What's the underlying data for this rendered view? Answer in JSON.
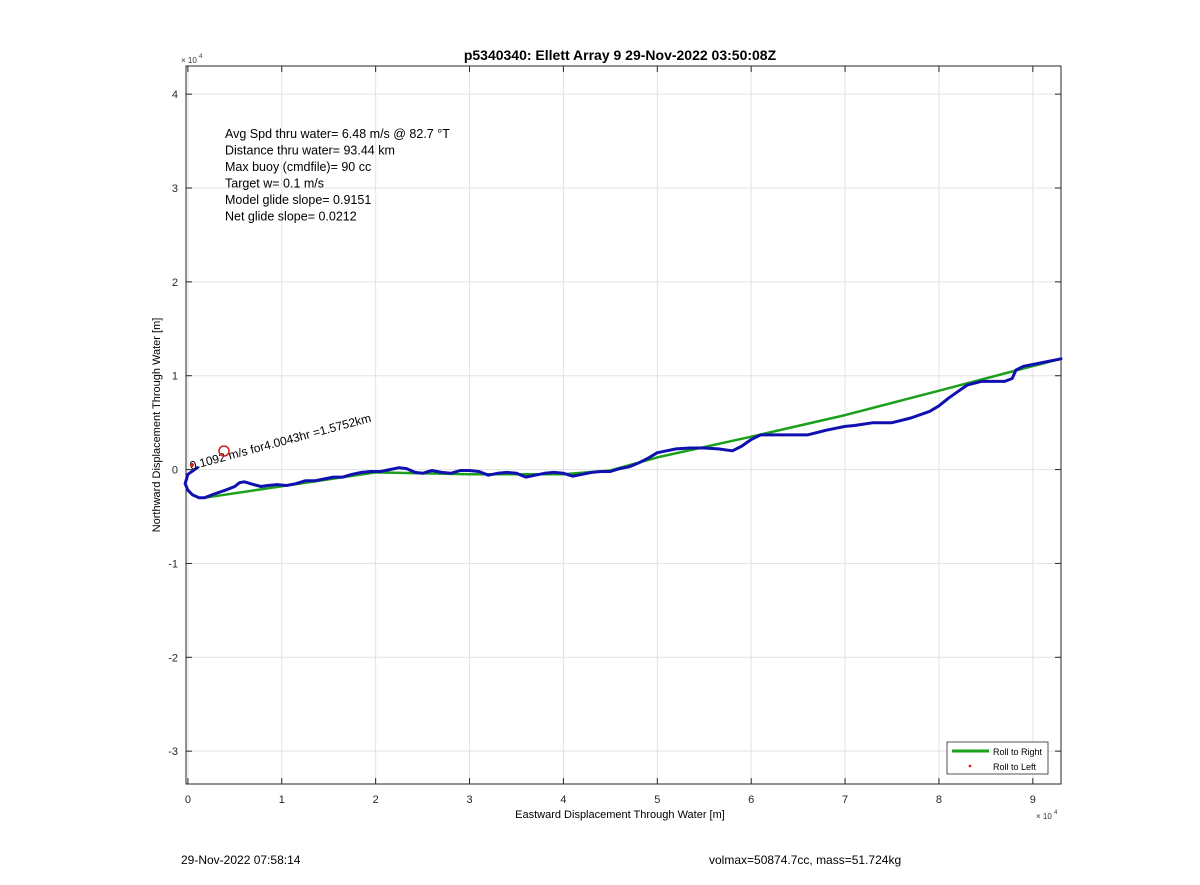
{
  "chart_data": {
    "type": "line",
    "title": "p5340340: Ellett Array 9 29-Nov-2022 03:50:08Z",
    "xlabel": "Eastward Displacement Through Water [m]",
    "ylabel": "Northward Displacement Through Water [m]",
    "x_exponent_label": "× 10^4",
    "y_exponent_label": "× 10^4",
    "xlim": [
      -0.02,
      9.3
    ],
    "ylim": [
      -3.35,
      4.3
    ],
    "axis_multiplier": 10000,
    "xticks": [
      0,
      1,
      2,
      3,
      4,
      5,
      6,
      7,
      8,
      9
    ],
    "yticks": [
      -3,
      -2,
      -1,
      0,
      1,
      2,
      3,
      4
    ],
    "grid": true,
    "legend_position": "bottom-right",
    "legend": [
      {
        "name": "Roll to Right",
        "color": "#1aa01a",
        "marker": "line"
      },
      {
        "name": "Roll to Left",
        "color": "#e02020",
        "marker": "dot"
      }
    ],
    "stats_lines": [
      "Avg Spd thru water=  6.48 m/s @  82.7 °T",
      "Distance thru water= 93.44 km",
      "Max buoy (cmdfile)= 90 cc",
      "Target w= 0.1 m/s",
      "Model glide slope= 0.9151",
      "Net glide slope= 0.0212"
    ],
    "annotation": "0.1092 m/s for4.0043hr =1.5752km",
    "series": [
      {
        "name": "Roll to Right",
        "color": "#1aa01a",
        "x": [
          0.18,
          2.0,
          3.0,
          4.0,
          4.5,
          5.0,
          6.0,
          7.0,
          8.0,
          8.8,
          9.3
        ],
        "y": [
          -0.3,
          -0.03,
          -0.05,
          -0.05,
          -0.01,
          0.13,
          0.35,
          0.58,
          0.84,
          1.05,
          1.18
        ]
      },
      {
        "name": "track",
        "color": "#1010b0",
        "x": [
          0.1,
          0.0,
          -0.03,
          0.0,
          0.05,
          0.12,
          0.18,
          0.28,
          0.4,
          0.5,
          0.55,
          0.6,
          0.7,
          0.78,
          0.85,
          0.95,
          1.05,
          1.15,
          1.25,
          1.35,
          1.45,
          1.55,
          1.65,
          1.75,
          1.85,
          1.95,
          2.05,
          2.15,
          2.25,
          2.33,
          2.42,
          2.5,
          2.6,
          2.7,
          2.8,
          2.9,
          3.0,
          3.1,
          3.2,
          3.3,
          3.4,
          3.5,
          3.6,
          3.7,
          3.8,
          3.9,
          4.0,
          4.1,
          4.2,
          4.3,
          4.4,
          4.5,
          4.6,
          4.7,
          4.8,
          4.9,
          5.0,
          5.1,
          5.2,
          5.35,
          5.5,
          5.65,
          5.8,
          5.9,
          6.0,
          6.1,
          6.2,
          6.4,
          6.6,
          6.8,
          7.0,
          7.1,
          7.3,
          7.5,
          7.7,
          7.9,
          8.0,
          8.1,
          8.2,
          8.3,
          8.45,
          8.6,
          8.7,
          8.78,
          8.82,
          8.9,
          9.0,
          9.1,
          9.2,
          9.3
        ],
        "y": [
          0.02,
          -0.05,
          -0.15,
          -0.22,
          -0.27,
          -0.3,
          -0.3,
          -0.26,
          -0.22,
          -0.18,
          -0.14,
          -0.13,
          -0.16,
          -0.18,
          -0.17,
          -0.16,
          -0.17,
          -0.15,
          -0.12,
          -0.12,
          -0.1,
          -0.08,
          -0.08,
          -0.05,
          -0.03,
          -0.02,
          -0.02,
          0.0,
          0.02,
          0.01,
          -0.03,
          -0.04,
          -0.01,
          -0.03,
          -0.04,
          -0.01,
          -0.01,
          -0.02,
          -0.06,
          -0.04,
          -0.03,
          -0.04,
          -0.08,
          -0.06,
          -0.04,
          -0.03,
          -0.04,
          -0.07,
          -0.05,
          -0.03,
          -0.02,
          -0.02,
          0.01,
          0.03,
          0.07,
          0.12,
          0.18,
          0.2,
          0.22,
          0.23,
          0.23,
          0.22,
          0.2,
          0.25,
          0.32,
          0.37,
          0.37,
          0.37,
          0.37,
          0.42,
          0.46,
          0.47,
          0.5,
          0.5,
          0.55,
          0.62,
          0.68,
          0.76,
          0.83,
          0.9,
          0.94,
          0.94,
          0.94,
          0.97,
          1.06,
          1.1,
          1.12,
          1.14,
          1.16,
          1.18
        ]
      }
    ]
  },
  "footer": {
    "timestamp": "29-Nov-2022 07:58:14",
    "summary": "volmax=50874.7cc, mass=51.724kg"
  }
}
